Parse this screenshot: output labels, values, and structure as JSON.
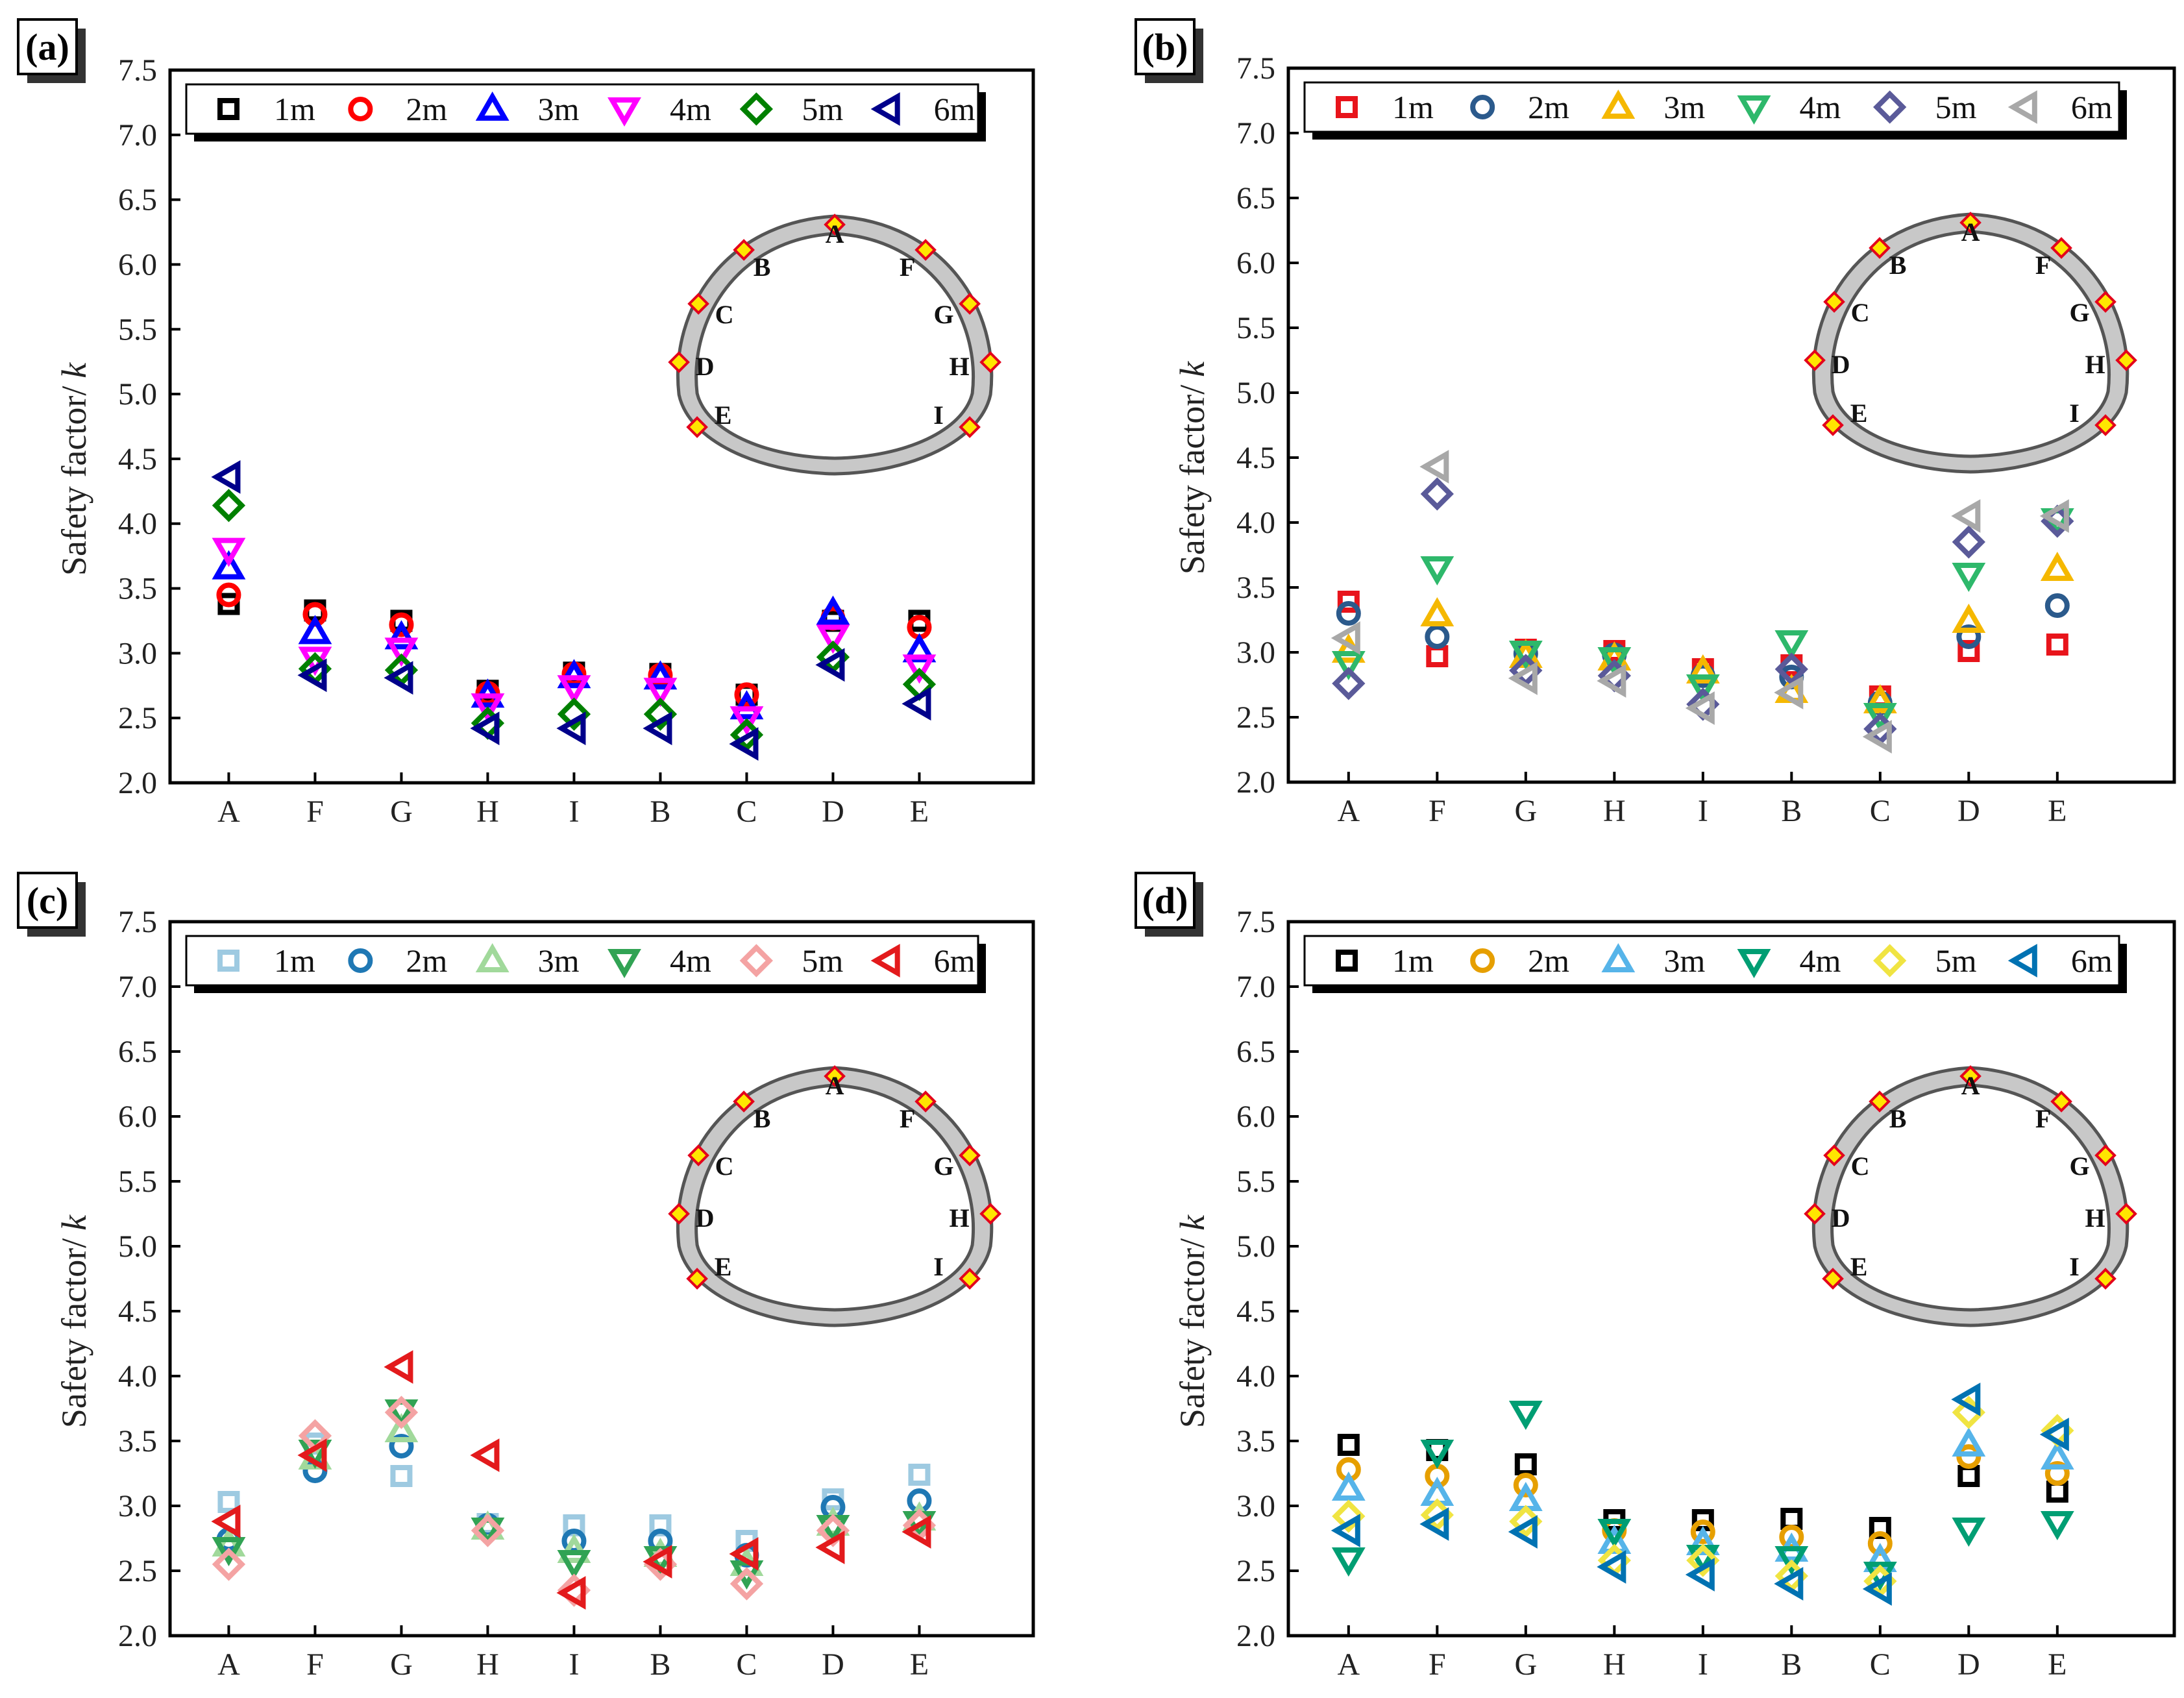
{
  "chart_data": [
    {
      "type": "scatter",
      "panel": "(a)",
      "ylabel": "Safety factor/ k",
      "ylabel_main": "Safety factor/",
      "ylabel_italic": "k",
      "ylim": [
        2.0,
        7.5
      ],
      "yticks": [
        "2.0",
        "2.5",
        "3.0",
        "3.5",
        "4.0",
        "4.5",
        "5.0",
        "5.5",
        "6.0",
        "6.5",
        "7.0",
        "7.5"
      ],
      "categories": [
        "A",
        "F",
        "G",
        "H",
        "I",
        "B",
        "C",
        "D",
        "E"
      ],
      "series": [
        {
          "name": "1m",
          "marker": "square",
          "color": "#000000",
          "values": [
            3.38,
            3.33,
            3.25,
            2.71,
            2.85,
            2.84,
            2.68,
            3.25,
            3.25
          ]
        },
        {
          "name": "2m",
          "marker": "circle",
          "color": "#ff0000",
          "values": [
            3.45,
            3.3,
            3.22,
            2.69,
            2.84,
            2.83,
            2.68,
            3.27,
            3.2
          ]
        },
        {
          "name": "3m",
          "marker": "triangle-up",
          "color": "#0000ff",
          "values": [
            3.66,
            3.16,
            3.12,
            2.67,
            2.82,
            2.81,
            2.58,
            3.31,
            3.02
          ]
        },
        {
          "name": "4m",
          "marker": "triangle-down",
          "color": "#ff00ff",
          "values": [
            3.8,
            2.96,
            3.03,
            2.6,
            2.74,
            2.72,
            2.5,
            3.13,
            2.9
          ]
        },
        {
          "name": "5m",
          "marker": "diamond",
          "color": "#008000",
          "values": [
            4.14,
            2.88,
            2.87,
            2.46,
            2.53,
            2.53,
            2.37,
            2.97,
            2.76
          ]
        },
        {
          "name": "6m",
          "marker": "triangle-left",
          "color": "#00008b",
          "values": [
            4.36,
            2.83,
            2.81,
            2.42,
            2.42,
            2.42,
            2.3,
            2.91,
            2.61
          ]
        }
      ],
      "tunnel_points": [
        "A",
        "B",
        "C",
        "D",
        "E",
        "F",
        "G",
        "H",
        "I"
      ]
    },
    {
      "type": "scatter",
      "panel": "(b)",
      "ylabel": "Safety factor/ k",
      "ylabel_main": "Safety factor/",
      "ylabel_italic": "k",
      "ylim": [
        2.0,
        7.5
      ],
      "yticks": [
        "2.0",
        "2.5",
        "3.0",
        "3.5",
        "4.0",
        "4.5",
        "5.0",
        "5.5",
        "6.0",
        "6.5",
        "7.0",
        "7.5"
      ],
      "categories": [
        "A",
        "F",
        "G",
        "H",
        "I",
        "B",
        "C",
        "D",
        "E"
      ],
      "series": [
        {
          "name": "1m",
          "marker": "square",
          "color": "#e8141b",
          "values": [
            3.39,
            2.97,
            3.02,
            3.01,
            2.87,
            2.9,
            2.66,
            3.01,
            3.06
          ]
        },
        {
          "name": "2m",
          "marker": "circle",
          "color": "#2b5a8c",
          "values": [
            3.3,
            3.12,
            2.99,
            2.98,
            2.82,
            2.81,
            2.61,
            3.12,
            3.36
          ]
        },
        {
          "name": "3m",
          "marker": "triangle-up",
          "color": "#f5b800",
          "values": [
            3.01,
            3.29,
            2.97,
            2.95,
            2.85,
            2.7,
            2.62,
            3.24,
            3.64
          ]
        },
        {
          "name": "4m",
          "marker": "triangle-down",
          "color": "#2eb86b",
          "values": [
            2.92,
            3.65,
            3.0,
            2.95,
            2.74,
            3.08,
            2.52,
            3.6,
            4.02
          ]
        },
        {
          "name": "5m",
          "marker": "diamond",
          "color": "#5a5a99",
          "values": [
            2.76,
            4.22,
            2.86,
            2.82,
            2.6,
            2.87,
            2.41,
            3.85,
            4.01
          ]
        },
        {
          "name": "6m",
          "marker": "triangle-left",
          "color": "#a8a8a8",
          "values": [
            3.11,
            4.43,
            2.8,
            2.78,
            2.57,
            2.69,
            2.35,
            4.05,
            4.05
          ]
        }
      ],
      "tunnel_points": [
        "A",
        "B",
        "C",
        "D",
        "E",
        "F",
        "G",
        "H",
        "I"
      ]
    },
    {
      "type": "scatter",
      "panel": "(c)",
      "ylabel": "Safety factor/ k",
      "ylabel_main": "Safety factor/",
      "ylabel_italic": "k",
      "ylim": [
        2.0,
        7.5
      ],
      "yticks": [
        "2.0",
        "2.5",
        "3.0",
        "3.5",
        "4.0",
        "4.5",
        "5.0",
        "5.5",
        "6.0",
        "6.5",
        "7.0",
        "7.5"
      ],
      "categories": [
        "A",
        "F",
        "G",
        "H",
        "I",
        "B",
        "C",
        "D",
        "E"
      ],
      "series": [
        {
          "name": "1m",
          "marker": "square",
          "color": "#9ecae1",
          "values": [
            3.03,
            3.48,
            3.23,
            2.86,
            2.85,
            2.85,
            2.73,
            3.05,
            3.24
          ]
        },
        {
          "name": "2m",
          "marker": "circle",
          "color": "#1f78b4",
          "values": [
            2.74,
            3.27,
            3.46,
            2.85,
            2.73,
            2.73,
            2.62,
            2.99,
            3.04
          ]
        },
        {
          "name": "3m",
          "marker": "triangle-up",
          "color": "#a1d99b",
          "values": [
            2.7,
            3.37,
            3.58,
            2.83,
            2.65,
            2.62,
            2.55,
            2.86,
            2.9
          ]
        },
        {
          "name": "4m",
          "marker": "triangle-down",
          "color": "#31a354",
          "values": [
            2.67,
            3.42,
            3.73,
            2.82,
            2.57,
            2.6,
            2.49,
            2.84,
            2.87
          ]
        },
        {
          "name": "5m",
          "marker": "diamond",
          "color": "#f4a3a3",
          "values": [
            2.55,
            3.54,
            3.72,
            2.81,
            2.35,
            2.55,
            2.4,
            2.81,
            2.85
          ]
        },
        {
          "name": "6m",
          "marker": "triangle-left",
          "color": "#e31a1c",
          "values": [
            2.88,
            3.39,
            4.07,
            3.39,
            2.33,
            2.57,
            2.63,
            2.68,
            2.8
          ]
        }
      ],
      "tunnel_points": [
        "A",
        "B",
        "C",
        "D",
        "E",
        "F",
        "G",
        "H",
        "I"
      ]
    },
    {
      "type": "scatter",
      "panel": "(d)",
      "ylabel": "Safety factor/ k",
      "ylabel_main": "Safety factor/",
      "ylabel_italic": "k",
      "ylim": [
        2.0,
        7.5
      ],
      "yticks": [
        "2.0",
        "2.5",
        "3.0",
        "3.5",
        "4.0",
        "4.5",
        "5.0",
        "5.5",
        "6.0",
        "6.5",
        "7.0",
        "7.5"
      ],
      "categories": [
        "A",
        "F",
        "G",
        "H",
        "I",
        "B",
        "C",
        "D",
        "E"
      ],
      "series": [
        {
          "name": "1m",
          "marker": "square",
          "color": "#000000",
          "values": [
            3.47,
            3.43,
            3.32,
            2.89,
            2.89,
            2.9,
            2.83,
            3.23,
            3.11
          ]
        },
        {
          "name": "2m",
          "marker": "circle",
          "color": "#e69f00",
          "values": [
            3.28,
            3.23,
            3.16,
            2.81,
            2.8,
            2.76,
            2.71,
            3.38,
            3.25
          ]
        },
        {
          "name": "3m",
          "marker": "triangle-up",
          "color": "#56b4e9",
          "values": [
            3.13,
            3.09,
            3.05,
            2.72,
            2.71,
            2.66,
            2.58,
            3.47,
            3.37
          ]
        },
        {
          "name": "4m",
          "marker": "triangle-down",
          "color": "#009e73",
          "values": [
            2.59,
            3.42,
            3.72,
            2.81,
            2.61,
            2.6,
            2.48,
            2.82,
            2.87
          ]
        },
        {
          "name": "5m",
          "marker": "diamond",
          "color": "#f0e442",
          "values": [
            2.92,
            2.93,
            2.88,
            2.58,
            2.58,
            2.46,
            2.42,
            3.72,
            3.58
          ]
        },
        {
          "name": "6m",
          "marker": "triangle-left",
          "color": "#0072b2",
          "values": [
            2.81,
            2.86,
            2.8,
            2.53,
            2.47,
            2.4,
            2.36,
            3.82,
            3.55
          ]
        }
      ],
      "tunnel_points": [
        "A",
        "B",
        "C",
        "D",
        "E",
        "F",
        "G",
        "H",
        "I"
      ]
    }
  ]
}
